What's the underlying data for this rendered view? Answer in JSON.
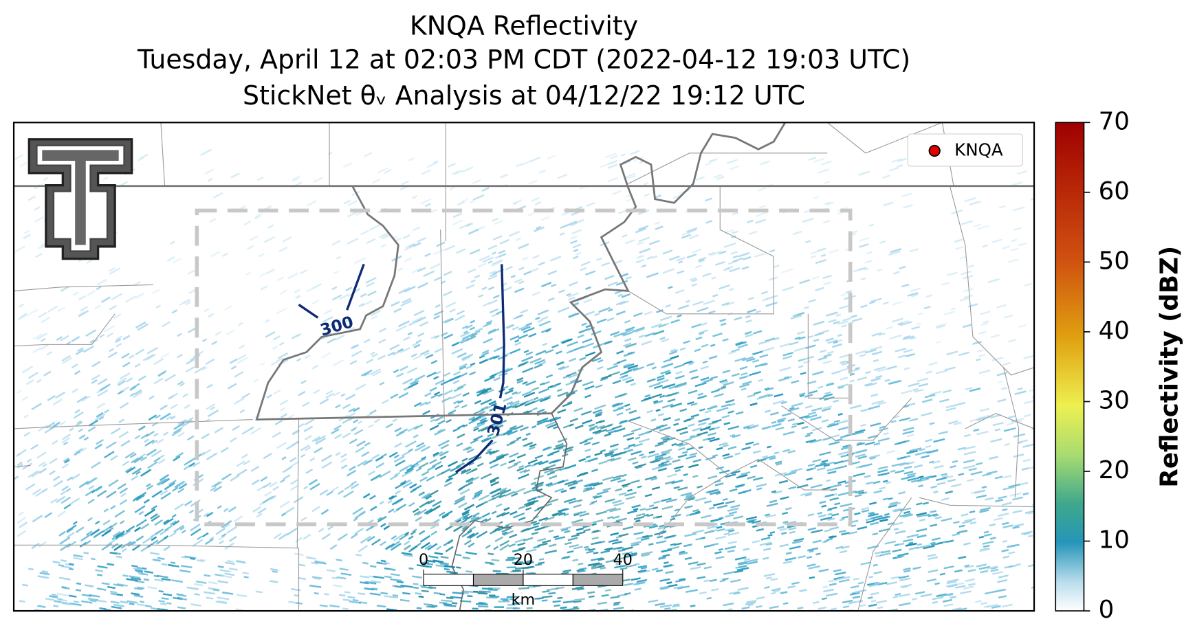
{
  "header": {
    "title": "KNQA Reflectivity",
    "subtitle": "Tuesday, April 12 at 02:03 PM CDT (2022-04-12 19:03 UTC)",
    "analysis": "StickNet θᵥ Analysis at 04/12/22 19:12 UTC"
  },
  "legend": {
    "label": "KNQA",
    "color": "#e00000"
  },
  "contours": [
    {
      "level": 300
    },
    {
      "level": 301
    }
  ],
  "scale_bar": {
    "lim": [
      0,
      40
    ],
    "ticks": [
      0,
      20,
      40
    ],
    "label": "km"
  },
  "colorbar": {
    "label": "Reflectivity (dBZ)",
    "lim": [
      0,
      70
    ],
    "ticks": [
      0,
      10,
      20,
      30,
      40,
      50,
      60,
      70
    ]
  }
}
